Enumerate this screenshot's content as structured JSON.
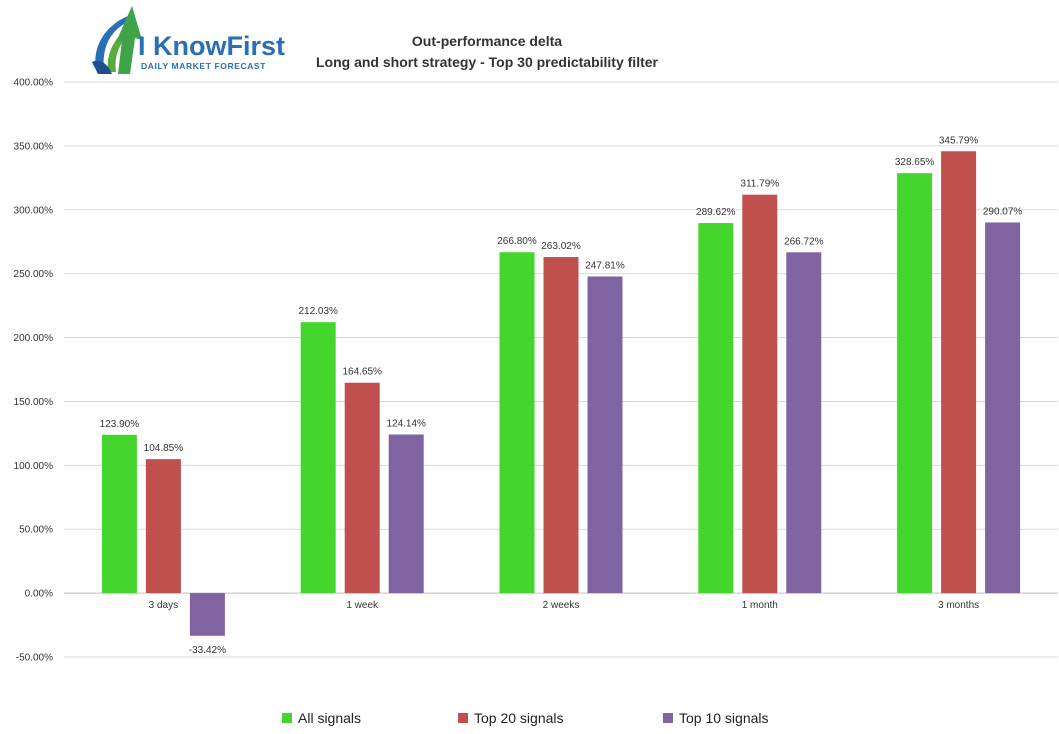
{
  "logo": {
    "brand": "I KnowFirst",
    "tagline": "DAILY MARKET FORECAST"
  },
  "chart_data": {
    "type": "bar",
    "title": "Out-performance delta",
    "subtitle": "Long and short strategy - Top 30 predictability filter",
    "categories": [
      "3 days",
      "1 week",
      "2 weeks",
      "1 month",
      "3 months"
    ],
    "series": [
      {
        "name": "All signals",
        "color": "#44d62c",
        "values": [
          123.9,
          212.03,
          266.8,
          289.62,
          328.65
        ]
      },
      {
        "name": "Top 20 signals",
        "color": "#c0504d",
        "values": [
          104.85,
          164.65,
          263.02,
          311.79,
          345.79
        ]
      },
      {
        "name": "Top 10 signals",
        "color": "#8064a2",
        "values": [
          -33.42,
          124.14,
          247.81,
          266.72,
          290.07
        ]
      }
    ],
    "data_labels": [
      [
        "123.90%",
        "212.03%",
        "266.80%",
        "289.62%",
        "328.65%"
      ],
      [
        "104.85%",
        "164.65%",
        "263.02%",
        "311.79%",
        "345.79%"
      ],
      [
        "-33.42%",
        "124.14%",
        "247.81%",
        "266.72%",
        "290.07%"
      ]
    ],
    "ylim": [
      -50,
      400
    ],
    "yticks": [
      -50,
      0,
      50,
      100,
      150,
      200,
      250,
      300,
      350,
      400
    ],
    "ytick_labels": [
      "-50.00%",
      "0.00%",
      "50.00%",
      "100.00%",
      "150.00%",
      "200.00%",
      "250.00%",
      "300.00%",
      "350.00%",
      "400.00%"
    ],
    "grid": true,
    "legend": "bottom"
  }
}
